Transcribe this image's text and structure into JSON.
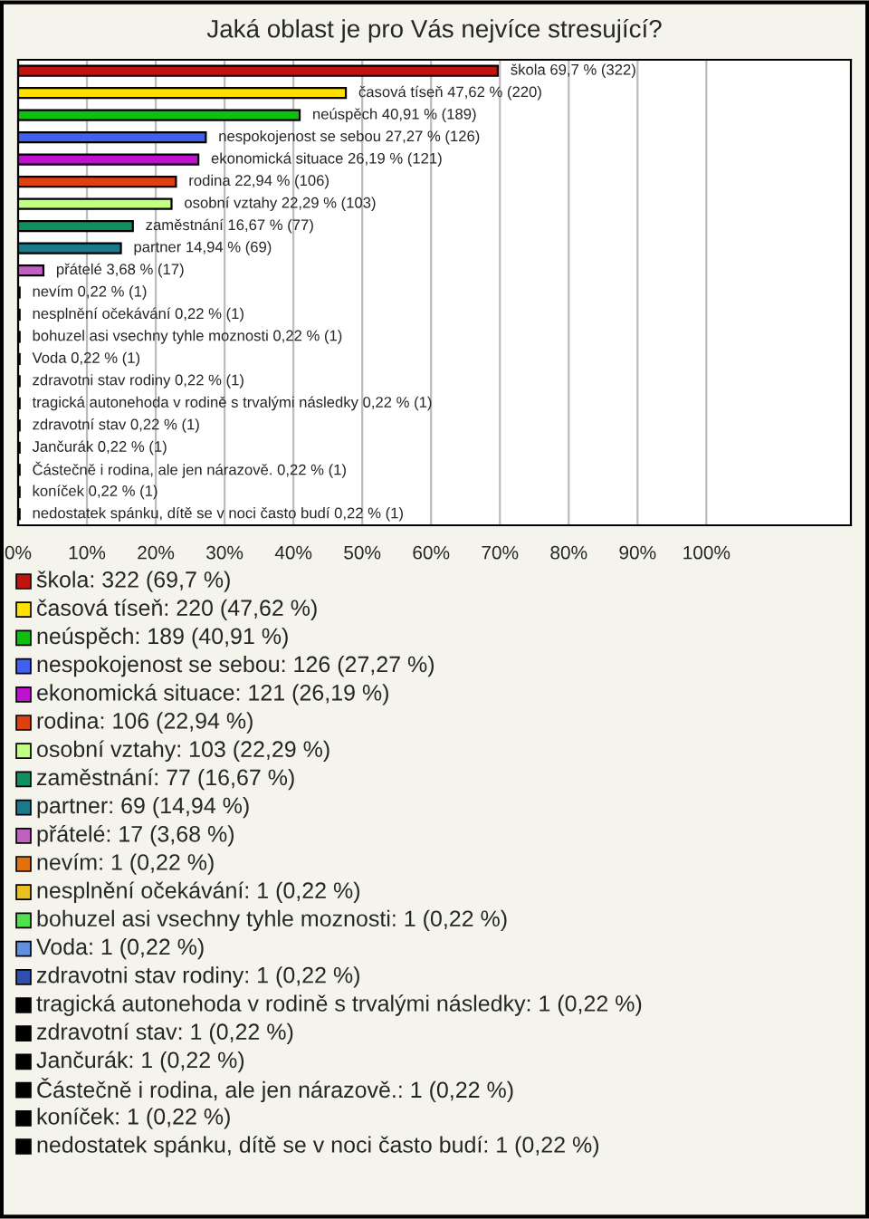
{
  "chart_data": {
    "type": "bar",
    "orientation": "horizontal",
    "title": "Jaká oblast je pro Vás nejvíce stresující?",
    "categories": [
      null,
      null,
      null,
      null,
      null,
      null,
      null,
      null,
      null,
      null,
      null,
      null,
      null,
      null,
      null,
      null,
      null,
      null,
      null,
      null,
      null
    ],
    "values": [
      69.7,
      47.62,
      40.91,
      27.27,
      26.19,
      22.94,
      22.29,
      16.67,
      14.94,
      3.68,
      0.22,
      0.22,
      0.22,
      0.22,
      0.22,
      0.22,
      0.22,
      0.22,
      0.22,
      0.22,
      0.22
    ],
    "colors": [
      "#c0150f",
      "#ffe000",
      "#10c010",
      "#4060f0",
      "#c010d0",
      "#e04010",
      "#c0ff80",
      "#109060",
      "#1a7a8a",
      "#c060c0",
      "#e07010",
      "#e8c020",
      "#50e050",
      "#6090e0",
      "#3050b0",
      "#000000",
      "#000000",
      "#000000",
      "#000000",
      "#000000",
      "#000000"
    ],
    "value_labels": [
      "škola 69,7 % (322)",
      "časová tíseň 47,62 % (220)",
      "neúspěch 40,91 % (189)",
      "nespokojenost se sebou 27,27 % (126)",
      "ekonomická situace 26,19 % (121)",
      "rodina 22,94 % (106)",
      "osobní vztahy 22,29 % (103)",
      "zaměstnání 16,67 % (77)",
      "partner 14,94 % (69)",
      "přátelé 3,68 % (17)",
      "nevím 0,22 % (1)",
      "nesplnění očekávání 0,22 % (1)",
      "bohuzel asi vsechny tyhle moznosti 0,22 % (1)",
      "Voda 0,22 % (1)",
      "zdravotni stav rodiny 0,22 % (1)",
      "tragická autonehoda v rodině s trvalými následky 0,22 % (1)",
      "zdravotní stav 0,22 % (1)",
      "Jančurák 0,22 % (1)",
      "Částečně i rodina, ale jen nárazově. 0,22 % (1)",
      "koníček 0,22 % (1)",
      "nedostatek spánku, dítě se v noci často budí 0,22 % (1)"
    ],
    "xlim": [
      0,
      121
    ],
    "xticks": [
      {
        "value": 0,
        "label": "0%"
      },
      {
        "value": 10,
        "label": "10%"
      },
      {
        "value": 20,
        "label": "20%"
      },
      {
        "value": 30,
        "label": "30%"
      },
      {
        "value": 40,
        "label": "40%"
      },
      {
        "value": 50,
        "label": "50%"
      },
      {
        "value": 60,
        "label": "60%"
      },
      {
        "value": 70,
        "label": "70%"
      },
      {
        "value": 80,
        "label": "80%"
      },
      {
        "value": 90,
        "label": "90%"
      },
      {
        "value": 100,
        "label": "100%"
      }
    ],
    "grid": "x",
    "annotations": [
      "škola: 322 (69,7 %)",
      "časová tíseň: 220 (47,62 %)",
      "neúspěch: 189 (40,91 %)",
      "nespokojenost se sebou: 126 (27,27 %)",
      "ekonomická situace: 121 (26,19 %)",
      "rodina: 106 (22,94 %)",
      "osobní vztahy: 103 (22,29 %)",
      "zaměstnání: 77 (16,67 %)",
      "partner: 69 (14,94 %)",
      "přátelé: 17 (3,68 %)",
      "nevím: 1 (0,22 %)",
      "nesplnění očekávání: 1 (0,22 %)",
      "bohuzel asi vsechny tyhle moznosti: 1 (0,22 %)",
      "Voda: 1 (0,22 %)",
      "zdravotni stav rodiny: 1 (0,22 %)",
      "tragická autonehoda v rodině s trvalými následky: 1 (0,22 %)",
      "zdravotní stav: 1 (0,22 %)",
      "Jančurák: 1 (0,22 %)",
      "Částečně i rodina, ale jen nárazově.: 1 (0,22 %)",
      "koníček: 1 (0,22 %)",
      "nedostatek spánku, dítě se v noci často budí: 1 (0,22 %)"
    ]
  }
}
